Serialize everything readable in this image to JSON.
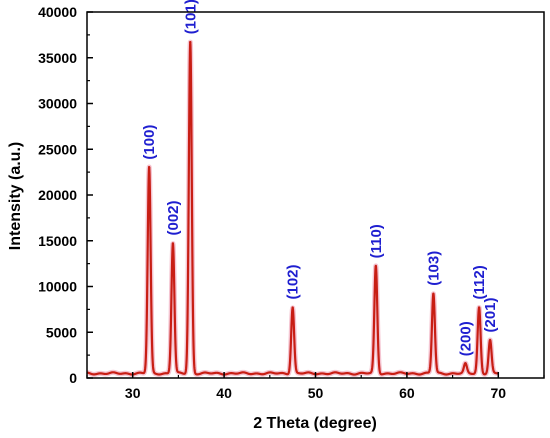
{
  "chart_data": {
    "type": "line",
    "xlabel": "2 Theta (degree)",
    "ylabel": "Intensity (a.u.)",
    "xlim": [
      25,
      75
    ],
    "ylim": [
      0,
      40000
    ],
    "x_ticks": [
      30,
      40,
      50,
      60,
      70
    ],
    "y_ticks": [
      0,
      5000,
      10000,
      15000,
      20000,
      25000,
      30000,
      35000,
      40000
    ],
    "grid": false,
    "line_color": "#c81e14",
    "label_color": "#1f1fd0",
    "baseline": 500,
    "peaks": [
      {
        "x": 31.8,
        "y": 23000,
        "label": "(100)"
      },
      {
        "x": 34.4,
        "y": 14700,
        "label": "(002)"
      },
      {
        "x": 36.3,
        "y": 36700,
        "label": "(101)"
      },
      {
        "x": 47.5,
        "y": 7700,
        "label": "(102)"
      },
      {
        "x": 56.6,
        "y": 12200,
        "label": "(110)"
      },
      {
        "x": 62.9,
        "y": 9200,
        "label": "(103)"
      },
      {
        "x": 66.4,
        "y": 1500,
        "label": "(200)"
      },
      {
        "x": 67.9,
        "y": 7700,
        "label": "(112)"
      },
      {
        "x": 69.1,
        "y": 4100,
        "label": "(201)"
      }
    ]
  }
}
